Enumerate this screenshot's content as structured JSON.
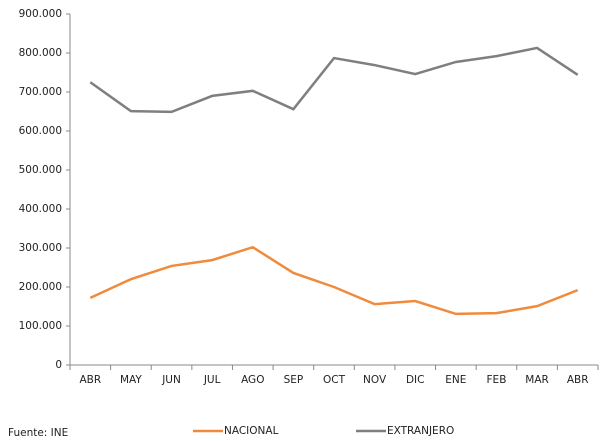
{
  "chart_data": {
    "type": "line",
    "categories": [
      "ABR",
      "MAY",
      "JUN",
      "JUL",
      "AGO",
      "SEP",
      "OCT",
      "NOV",
      "DIC",
      "ENE",
      "FEB",
      "MAR",
      "ABR"
    ],
    "series": [
      {
        "name": "NACIONAL",
        "color": "#f08a3c",
        "values": [
          172000,
          220000,
          254000,
          269000,
          302000,
          236000,
          200000,
          156000,
          164000,
          131000,
          133000,
          151000,
          192000
        ]
      },
      {
        "name": "EXTRANJERO",
        "color": "#7f7f7f",
        "values": [
          725000,
          651000,
          649000,
          690000,
          703000,
          656000,
          787000,
          769000,
          746000,
          777000,
          792000,
          813000,
          744000
        ]
      }
    ],
    "ylim": [
      0,
      900000
    ],
    "yticks": [
      0,
      {
        "value": 100000,
        "label": "100.000"
      },
      {
        "value": 200000,
        "label": "200.000"
      },
      {
        "value": 300000,
        "label": "300.000"
      },
      {
        "value": 400000,
        "label": "400.000"
      },
      {
        "value": 500000,
        "label": "500.000"
      },
      {
        "value": 600000,
        "label": "600.000"
      },
      {
        "value": 700000,
        "label": "700.000"
      },
      {
        "value": 800000,
        "label": "800.000"
      },
      {
        "value": 900000,
        "label": "900.000"
      }
    ],
    "source": "Fuente: INE",
    "grid": false,
    "legend": "bottom"
  }
}
